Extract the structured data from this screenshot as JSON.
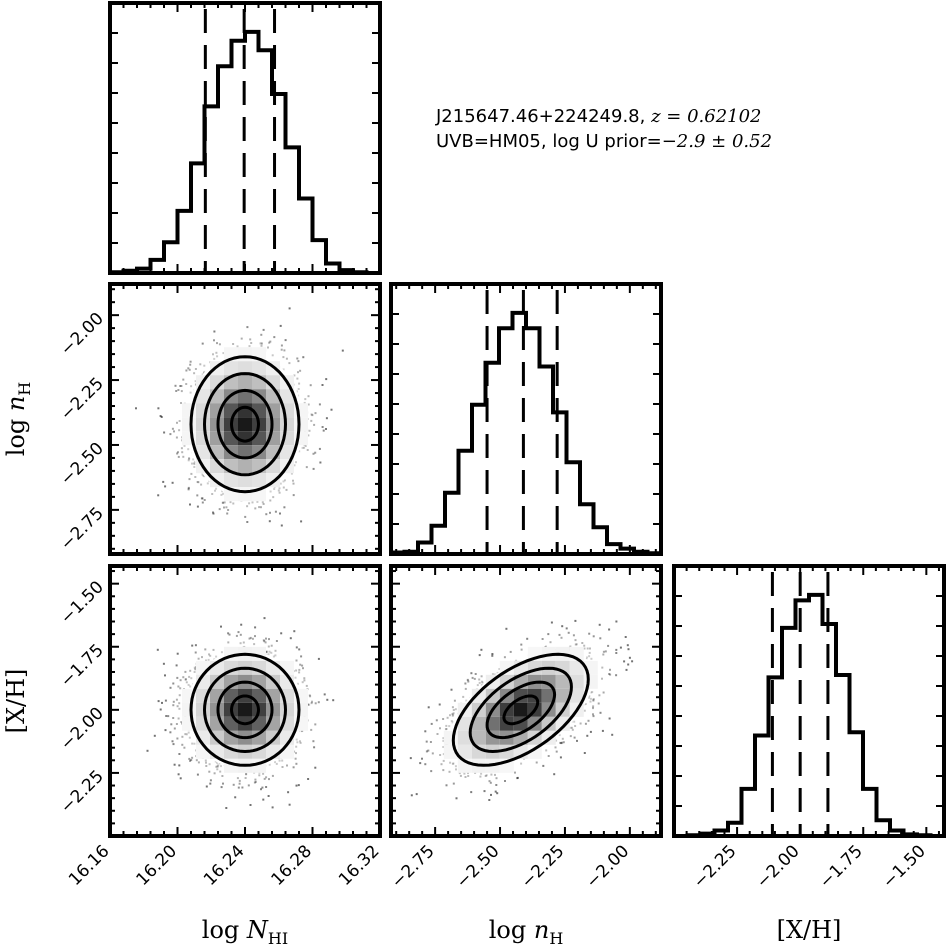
{
  "annotation": {
    "line1_text": "J215647.46+224249.8, ",
    "line1_math": "z = 0.62102",
    "line2_text": "UVB=HM05, log U prior=",
    "line2_math": "−2.9 ± 0.52"
  },
  "chart_data": {
    "type": "corner",
    "parameters": [
      {
        "key": "logNHI",
        "label": "log N",
        "label_sub": "HI",
        "range": [
          16.16,
          16.32
        ],
        "ticks": [
          16.16,
          16.2,
          16.24,
          16.28,
          16.32
        ],
        "tick_labels": [
          "16.16",
          "16.20",
          "16.24",
          "16.28",
          "16.32"
        ],
        "quantiles": [
          16.2165,
          16.2395,
          16.2575
        ]
      },
      {
        "key": "lognH",
        "label": "log n",
        "label_sub": "H",
        "range": [
          -2.92,
          -1.88
        ],
        "ticks": [
          -2.75,
          -2.5,
          -2.25,
          -2.0
        ],
        "tick_labels": [
          "−2.75",
          "−2.50",
          "−2.25",
          "−2.00"
        ],
        "quantiles": [
          -2.55,
          -2.41,
          -2.28
        ]
      },
      {
        "key": "XH",
        "label": "[X/H]",
        "label_sub": "",
        "range": [
          -2.5,
          -1.43
        ],
        "ticks": [
          -2.25,
          -2.0,
          -1.75,
          -1.5
        ],
        "tick_labels": [
          "−2.25",
          "−2.00",
          "−1.75",
          "−1.50"
        ],
        "quantiles": [
          -2.11,
          -2.0,
          -1.89
        ]
      }
    ],
    "histograms": [
      {
        "param": "logNHI",
        "bin_start": 16.16,
        "bin_width": 0.008,
        "counts": [
          1,
          3,
          6,
          18,
          42,
          85,
          150,
          228,
          283,
          318,
          330,
          305,
          245,
          172,
          102,
          45,
          13,
          4,
          1,
          0
        ]
      },
      {
        "param": "lognH",
        "bin_start": -2.92,
        "bin_width": 0.052,
        "counts": [
          2,
          3,
          15,
          37,
          80,
          135,
          195,
          250,
          295,
          315,
          295,
          245,
          185,
          120,
          65,
          35,
          13,
          7,
          3,
          1
        ]
      },
      {
        "param": "XH",
        "bin_start": -2.5,
        "bin_width": 0.0535,
        "counts": [
          0,
          1,
          3,
          7,
          17,
          60,
          128,
          202,
          265,
          300,
          307,
          270,
          205,
          132,
          60,
          20,
          7,
          2,
          1,
          0
        ]
      }
    ],
    "joint": [
      {
        "x": "logNHI",
        "y": "lognH",
        "center": [
          16.24,
          -2.42
        ],
        "sigma": [
          0.016,
          0.13
        ],
        "rho": 0.0
      },
      {
        "x": "logNHI",
        "y": "XH",
        "center": [
          16.24,
          -2.0
        ],
        "sigma": [
          0.016,
          0.11
        ],
        "rho": 0.0
      },
      {
        "x": "lognH",
        "y": "XH",
        "center": [
          -2.42,
          -2.0
        ],
        "sigma": [
          0.13,
          0.11
        ],
        "rho": 0.55
      }
    ],
    "contour_levels_sigma": [
      0.5,
      1.0,
      1.5,
      2.0
    ]
  }
}
